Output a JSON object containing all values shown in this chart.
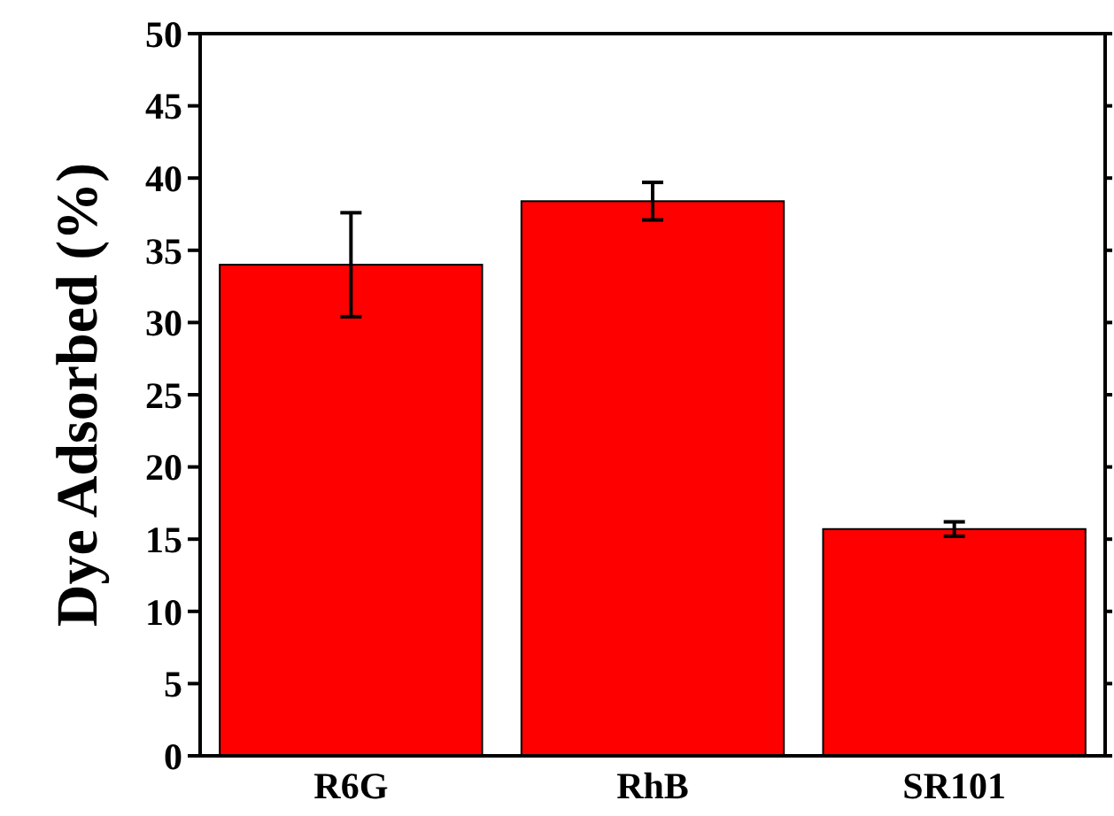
{
  "chart_data": {
    "type": "bar",
    "ylabel": "Dye Adsorbed (%)",
    "categories": [
      "R6G",
      "RhB",
      "SR101"
    ],
    "values": [
      34,
      38.4,
      15.7
    ],
    "errors": [
      3.6,
      1.3,
      0.5
    ],
    "color": "#ff0000",
    "ylim": [
      0,
      50
    ],
    "yticks": [
      0,
      5,
      10,
      15,
      20,
      25,
      30,
      35,
      40,
      45,
      50
    ],
    "grid": false
  }
}
